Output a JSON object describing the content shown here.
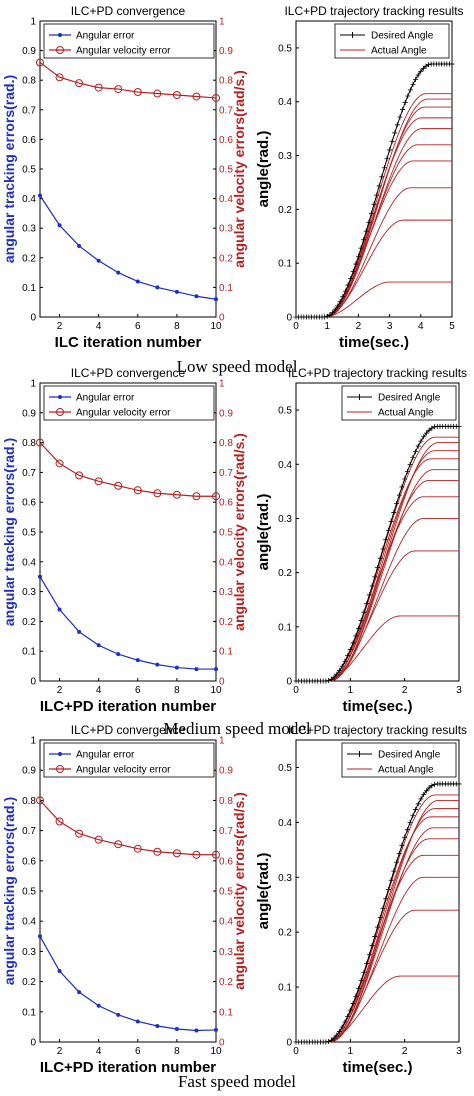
{
  "captions": [
    "Low speed model",
    "Medium speed model",
    "Fast speed model"
  ],
  "colors": {
    "blue": "#1f2fbf",
    "red": "#b22222",
    "black": "#000000"
  },
  "chart_data": [
    {
      "type": "line",
      "title": "ILC+PD convergence",
      "xlabel": "ILC iteration number",
      "ylabel": "angular tracking errors(rad.)",
      "y2label": "angular velocity errors(rad/s.)",
      "xlim": [
        1,
        10
      ],
      "ylim": [
        0,
        1
      ],
      "y2lim": [
        0,
        1
      ],
      "xticks": [
        "2",
        "4",
        "6",
        "8",
        "10"
      ],
      "yticks": [
        "0",
        "0.1",
        "0.2",
        "0.3",
        "0.4",
        "0.5",
        "0.6",
        "0.7",
        "0.8",
        "0.9",
        "1"
      ],
      "y2ticks": [
        "0",
        "0.1",
        "0.2",
        "0.3",
        "0.4",
        "0.5",
        "0.6",
        "0.7",
        "0.8",
        "0.9",
        "1"
      ],
      "legend": "top-left",
      "x": [
        1,
        2,
        3,
        4,
        5,
        6,
        7,
        8,
        9,
        10
      ],
      "series": [
        {
          "name": "Angular error",
          "axis": "left",
          "color": "blue",
          "marker": "dot",
          "values": [
            0.41,
            0.31,
            0.24,
            0.19,
            0.15,
            0.12,
            0.1,
            0.085,
            0.07,
            0.06
          ]
        },
        {
          "name": "Angular velocity error",
          "axis": "right",
          "color": "red",
          "marker": "circle",
          "values": [
            0.86,
            0.81,
            0.79,
            0.775,
            0.77,
            0.76,
            0.755,
            0.75,
            0.745,
            0.74
          ]
        }
      ]
    },
    {
      "type": "line",
      "title": "ILC+PD trajectory tracking results",
      "xlabel": "time(sec.)",
      "ylabel": "angle(rad.)",
      "xlim": [
        0,
        5
      ],
      "ylim": [
        0,
        0.55
      ],
      "xticks": [
        "0",
        "1",
        "2",
        "3",
        "4",
        "5"
      ],
      "yticks": [
        "0",
        "0.1",
        "0.2",
        "0.3",
        "0.4",
        "0.5"
      ],
      "legend": "top-right",
      "desired": {
        "name": "Desired Angle",
        "start": 0.9,
        "end": 4.35,
        "final": 0.47
      },
      "actual": {
        "name": "Actual Angle",
        "count": 10,
        "finals": [
          0.065,
          0.18,
          0.24,
          0.29,
          0.32,
          0.35,
          0.37,
          0.39,
          0.405,
          0.415
        ]
      }
    },
    {
      "type": "line",
      "title": "ILC+PD convergence",
      "xlabel": "ILC+PD iteration number",
      "ylabel": "angular tracking errors(rad.)",
      "y2label": "angular velocity errors(rad/s.)",
      "xlim": [
        1,
        10
      ],
      "ylim": [
        0,
        1
      ],
      "y2lim": [
        0,
        1
      ],
      "xticks": [
        "2",
        "4",
        "6",
        "8",
        "10"
      ],
      "yticks": [
        "0",
        "0.1",
        "0.2",
        "0.3",
        "0.4",
        "0.5",
        "0.6",
        "0.7",
        "0.8",
        "0.9",
        "1"
      ],
      "y2ticks": [
        "0",
        "0.1",
        "0.2",
        "0.3",
        "0.4",
        "0.5",
        "0.6",
        "0.7",
        "0.8",
        "0.9",
        "1"
      ],
      "legend": "top-left",
      "x": [
        1,
        2,
        3,
        4,
        5,
        6,
        7,
        8,
        9,
        10
      ],
      "series": [
        {
          "name": "Angular error",
          "axis": "left",
          "color": "blue",
          "marker": "dot",
          "values": [
            0.35,
            0.24,
            0.165,
            0.12,
            0.09,
            0.07,
            0.055,
            0.045,
            0.04,
            0.04
          ]
        },
        {
          "name": "Angular velocity error",
          "axis": "right",
          "color": "red",
          "marker": "circle",
          "values": [
            0.8,
            0.73,
            0.69,
            0.67,
            0.655,
            0.64,
            0.63,
            0.625,
            0.62,
            0.62
          ]
        }
      ]
    },
    {
      "type": "line",
      "title": "ILC+PD trajectory tracking results",
      "xlabel": "time(sec.)",
      "ylabel": "angle(rad.)",
      "xlim": [
        0,
        3
      ],
      "ylim": [
        0,
        0.55
      ],
      "xticks": [
        "0",
        "1",
        "2",
        "3"
      ],
      "yticks": [
        "0",
        "0.1",
        "0.2",
        "0.3",
        "0.4",
        "0.5"
      ],
      "legend": "top-right",
      "desired": {
        "name": "Desired Angle",
        "start": 0.55,
        "end": 2.6,
        "final": 0.47
      },
      "actual": {
        "name": "Actual Angle",
        "count": 10,
        "finals": [
          0.12,
          0.24,
          0.3,
          0.34,
          0.37,
          0.39,
          0.41,
          0.425,
          0.44,
          0.45
        ]
      }
    },
    {
      "type": "line",
      "title": "ILC+PD convergence",
      "xlabel": "ILC+PD iteration number",
      "ylabel": "angular tracking errors(rad.)",
      "y2label": "angular velocity errors(rad/s.)",
      "xlim": [
        1,
        10
      ],
      "ylim": [
        0,
        1
      ],
      "y2lim": [
        0,
        1
      ],
      "xticks": [
        "2",
        "4",
        "6",
        "8",
        "10"
      ],
      "yticks": [
        "0",
        "0.1",
        "0.2",
        "0.3",
        "0.4",
        "0.5",
        "0.6",
        "0.7",
        "0.8",
        "0.9",
        "1"
      ],
      "y2ticks": [
        "0",
        "0.1",
        "0.2",
        "0.3",
        "0.4",
        "0.5",
        "0.6",
        "0.7",
        "0.8",
        "0.9",
        "1"
      ],
      "legend": "top-left",
      "x": [
        1,
        2,
        3,
        4,
        5,
        6,
        7,
        8,
        9,
        10
      ],
      "series": [
        {
          "name": "Angular error",
          "axis": "left",
          "color": "blue",
          "marker": "dot",
          "values": [
            0.35,
            0.235,
            0.165,
            0.12,
            0.09,
            0.068,
            0.053,
            0.043,
            0.038,
            0.04
          ]
        },
        {
          "name": "Angular velocity error",
          "axis": "right",
          "color": "red",
          "marker": "circle",
          "values": [
            0.8,
            0.73,
            0.69,
            0.67,
            0.655,
            0.64,
            0.63,
            0.625,
            0.62,
            0.62
          ]
        }
      ]
    },
    {
      "type": "line",
      "title": "ILC+PD trajectory tracking results",
      "xlabel": "time(sec.)",
      "ylabel": "angle(rad.)",
      "xlim": [
        0,
        3
      ],
      "ylim": [
        0,
        0.55
      ],
      "xticks": [
        "0",
        "1",
        "2",
        "3"
      ],
      "yticks": [
        "0",
        "0.1",
        "0.2",
        "0.3",
        "0.4",
        "0.5"
      ],
      "legend": "top-right",
      "desired": {
        "name": "Desired Angle",
        "start": 0.55,
        "end": 2.6,
        "final": 0.47
      },
      "actual": {
        "name": "Actual Angle",
        "count": 10,
        "finals": [
          0.12,
          0.24,
          0.3,
          0.34,
          0.37,
          0.39,
          0.41,
          0.425,
          0.44,
          0.45
        ]
      }
    }
  ]
}
